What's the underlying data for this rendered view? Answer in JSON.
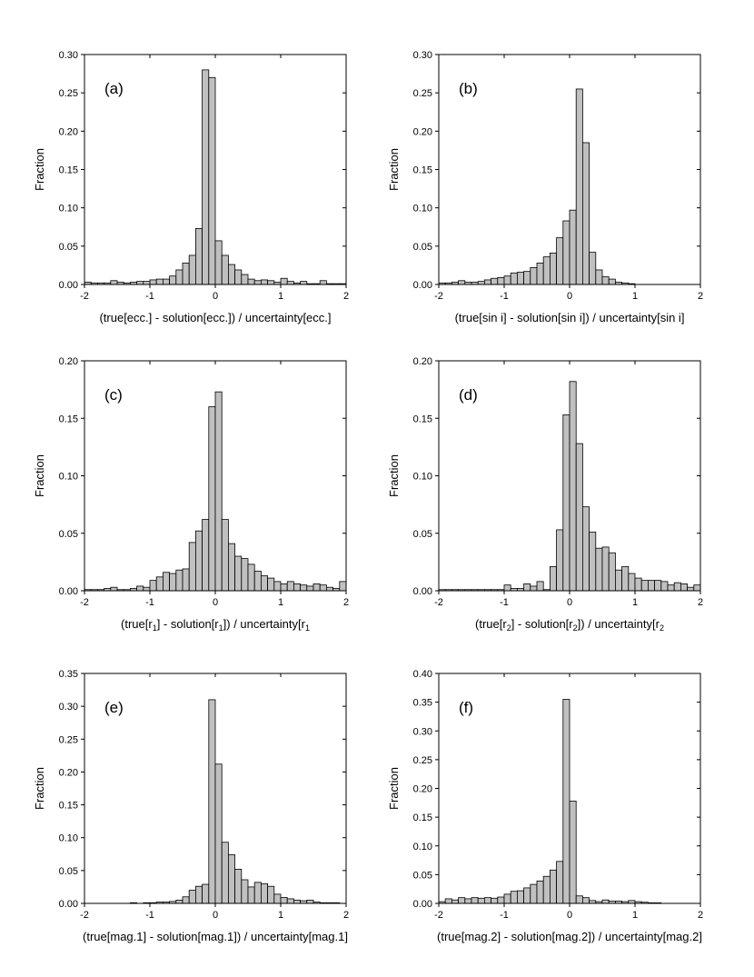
{
  "chart_data": [
    {
      "type": "bar",
      "panel_label": "(a)",
      "ylabel": "Fraction",
      "xlabel": [
        {
          "t": "(true[ecc.] - solution[ecc.]) / uncertainty[ecc.]"
        }
      ],
      "xlim": [
        -2,
        2
      ],
      "ylim": [
        0,
        0.3
      ],
      "xticks": [
        "-2",
        "-1",
        "0",
        "1",
        "2"
      ],
      "yticks": [
        "0.00",
        "0.05",
        "0.10",
        "0.15",
        "0.20",
        "0.25",
        "0.30"
      ],
      "bin_start": -2.0,
      "bin_width": 0.1,
      "values": [
        0.003,
        0.002,
        0.002,
        0.002,
        0.005,
        0.003,
        0.002,
        0.003,
        0.004,
        0.004,
        0.006,
        0.007,
        0.007,
        0.011,
        0.019,
        0.028,
        0.038,
        0.073,
        0.28,
        0.27,
        0.057,
        0.038,
        0.026,
        0.019,
        0.013,
        0.007,
        0.005,
        0.006,
        0.005,
        0.003,
        0.008,
        0.004,
        0.002,
        0.004,
        0.001,
        0.001,
        0.005,
        0.001,
        0.001,
        0.001
      ]
    },
    {
      "type": "bar",
      "panel_label": "(b)",
      "ylabel": "Fraction",
      "xlabel": [
        {
          "t": "(true[sin i] - solution[sin i]) / uncertainty[sin i]"
        }
      ],
      "xlim": [
        -2,
        2
      ],
      "ylim": [
        0,
        0.3
      ],
      "xticks": [
        "-2",
        "-1",
        "0",
        "1",
        "2"
      ],
      "yticks": [
        "0.00",
        "0.05",
        "0.10",
        "0.15",
        "0.20",
        "0.25",
        "0.30"
      ],
      "bin_start": -2.0,
      "bin_width": 0.1,
      "values": [
        0.002,
        0.002,
        0.003,
        0.005,
        0.003,
        0.003,
        0.004,
        0.006,
        0.008,
        0.009,
        0.011,
        0.015,
        0.016,
        0.017,
        0.022,
        0.028,
        0.036,
        0.041,
        0.061,
        0.083,
        0.097,
        0.255,
        0.185,
        0.042,
        0.019,
        0.01,
        0.007,
        0.003,
        0.002,
        0.001,
        0,
        0,
        0,
        0,
        0,
        0,
        0,
        0,
        0,
        0
      ]
    },
    {
      "type": "bar",
      "panel_label": "(c)",
      "ylabel": "Fraction",
      "xlabel": [
        {
          "t": "(true[r"
        },
        {
          "t": "1",
          "sub": true
        },
        {
          "t": "] - solution[r"
        },
        {
          "t": "1",
          "sub": true
        },
        {
          "t": "]) / uncertainty[r"
        },
        {
          "t": "1",
          "sub": true
        }
      ],
      "xlim": [
        -2,
        2
      ],
      "ylim": [
        0,
        0.2
      ],
      "xticks": [
        "-2",
        "-1",
        "0",
        "1",
        "2"
      ],
      "yticks": [
        "0.00",
        "0.05",
        "0.10",
        "0.15",
        "0.20"
      ],
      "bin_start": -2.0,
      "bin_width": 0.1,
      "values": [
        0.001,
        0.001,
        0.001,
        0.002,
        0.003,
        0.001,
        0.001,
        0.002,
        0.004,
        0.003,
        0.009,
        0.012,
        0.016,
        0.015,
        0.018,
        0.019,
        0.042,
        0.052,
        0.062,
        0.16,
        0.173,
        0.062,
        0.041,
        0.03,
        0.028,
        0.023,
        0.017,
        0.013,
        0.011,
        0.008,
        0.006,
        0.008,
        0.006,
        0.005,
        0.004,
        0.006,
        0.005,
        0.003,
        0.002,
        0.008
      ]
    },
    {
      "type": "bar",
      "panel_label": "(d)",
      "ylabel": "Fraction",
      "xlabel": [
        {
          "t": "(true[r"
        },
        {
          "t": "2",
          "sub": true
        },
        {
          "t": "] - solution[r"
        },
        {
          "t": "2",
          "sub": true
        },
        {
          "t": "]) / uncertainty[r"
        },
        {
          "t": "2",
          "sub": true
        }
      ],
      "xlim": [
        -2,
        2
      ],
      "ylim": [
        0,
        0.2
      ],
      "xticks": [
        "-2",
        "-1",
        "0",
        "1",
        "2"
      ],
      "yticks": [
        "0.00",
        "0.05",
        "0.10",
        "0.15",
        "0.20"
      ],
      "bin_start": -2.0,
      "bin_width": 0.1,
      "values": [
        0.001,
        0.001,
        0.001,
        0.001,
        0.001,
        0.001,
        0.001,
        0.001,
        0.001,
        0.001,
        0.005,
        0.002,
        0.002,
        0.006,
        0.004,
        0.008,
        0.001,
        0.021,
        0.053,
        0.153,
        0.182,
        0.128,
        0.073,
        0.051,
        0.037,
        0.038,
        0.033,
        0.018,
        0.021,
        0.015,
        0.011,
        0.009,
        0.009,
        0.009,
        0.008,
        0.005,
        0.007,
        0.006,
        0.003,
        0.005
      ]
    },
    {
      "type": "bar",
      "panel_label": "(e)",
      "ylabel": "Fraction",
      "xlabel": [
        {
          "t": "(true[mag.1] - solution[mag.1]) / uncertainty[mag.1]"
        }
      ],
      "xlim": [
        -2,
        2
      ],
      "ylim": [
        0,
        0.35
      ],
      "xticks": [
        "-2",
        "-1",
        "0",
        "1",
        "2"
      ],
      "yticks": [
        "0.00",
        "0.05",
        "0.10",
        "0.15",
        "0.20",
        "0.25",
        "0.30",
        "0.35"
      ],
      "bin_start": -2.0,
      "bin_width": 0.1,
      "values": [
        0,
        0,
        0,
        0,
        0,
        0,
        0,
        0.001,
        0,
        0.001,
        0.001,
        0.002,
        0.002,
        0.003,
        0.005,
        0.01,
        0.02,
        0.026,
        0.029,
        0.31,
        0.212,
        0.093,
        0.074,
        0.052,
        0.036,
        0.025,
        0.032,
        0.03,
        0.026,
        0.014,
        0.009,
        0.007,
        0.005,
        0.004,
        0.005,
        0.002,
        0.001,
        0.001,
        0.001,
        0
      ]
    },
    {
      "type": "bar",
      "panel_label": "(f)",
      "ylabel": "Fraction",
      "xlabel": [
        {
          "t": "(true[mag.2] - solution[mag.2]) / uncertainty[mag.2]"
        }
      ],
      "xlim": [
        -2,
        2
      ],
      "ylim": [
        0,
        0.4
      ],
      "xticks": [
        "-2",
        "-1",
        "0",
        "1",
        "2"
      ],
      "yticks": [
        "0.00",
        "0.05",
        "0.10",
        "0.15",
        "0.20",
        "0.25",
        "0.30",
        "0.35",
        "0.40"
      ],
      "bin_start": -2.0,
      "bin_width": 0.1,
      "values": [
        0.003,
        0.008,
        0.006,
        0.01,
        0.008,
        0.01,
        0.009,
        0.01,
        0.009,
        0.011,
        0.016,
        0.021,
        0.022,
        0.027,
        0.033,
        0.039,
        0.047,
        0.058,
        0.073,
        0.355,
        0.178,
        0.013,
        0.01,
        0.005,
        0.003,
        0.006,
        0.004,
        0.004,
        0.003,
        0.005,
        0.003,
        0.002,
        0.001,
        0.001,
        0,
        0,
        0,
        0,
        0,
        0
      ]
    }
  ]
}
